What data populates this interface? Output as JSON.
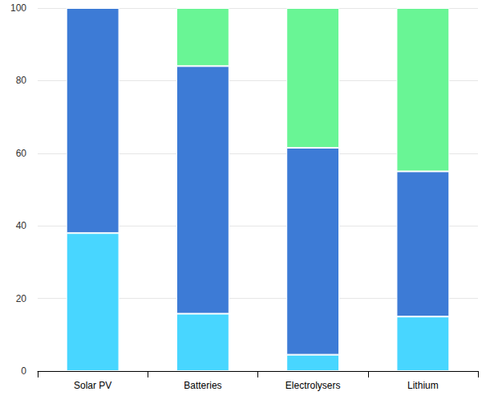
{
  "chart_data": {
    "type": "bar",
    "stacked": true,
    "grid": true,
    "categories": [
      "Solar PV",
      "Batteries",
      "Electrolysers",
      "Lithium"
    ],
    "series": [
      {
        "color": "#48d6ff",
        "values": [
          38,
          15.8,
          4.5,
          15
        ]
      },
      {
        "color": "#3d7bd6",
        "values": [
          62,
          68.2,
          57,
          40
        ]
      },
      {
        "color": "#69f595",
        "values": [
          0,
          16,
          38.5,
          45
        ]
      }
    ],
    "ylim": [
      0,
      100
    ],
    "yticks": [
      0,
      20,
      40,
      60,
      80,
      100
    ]
  }
}
